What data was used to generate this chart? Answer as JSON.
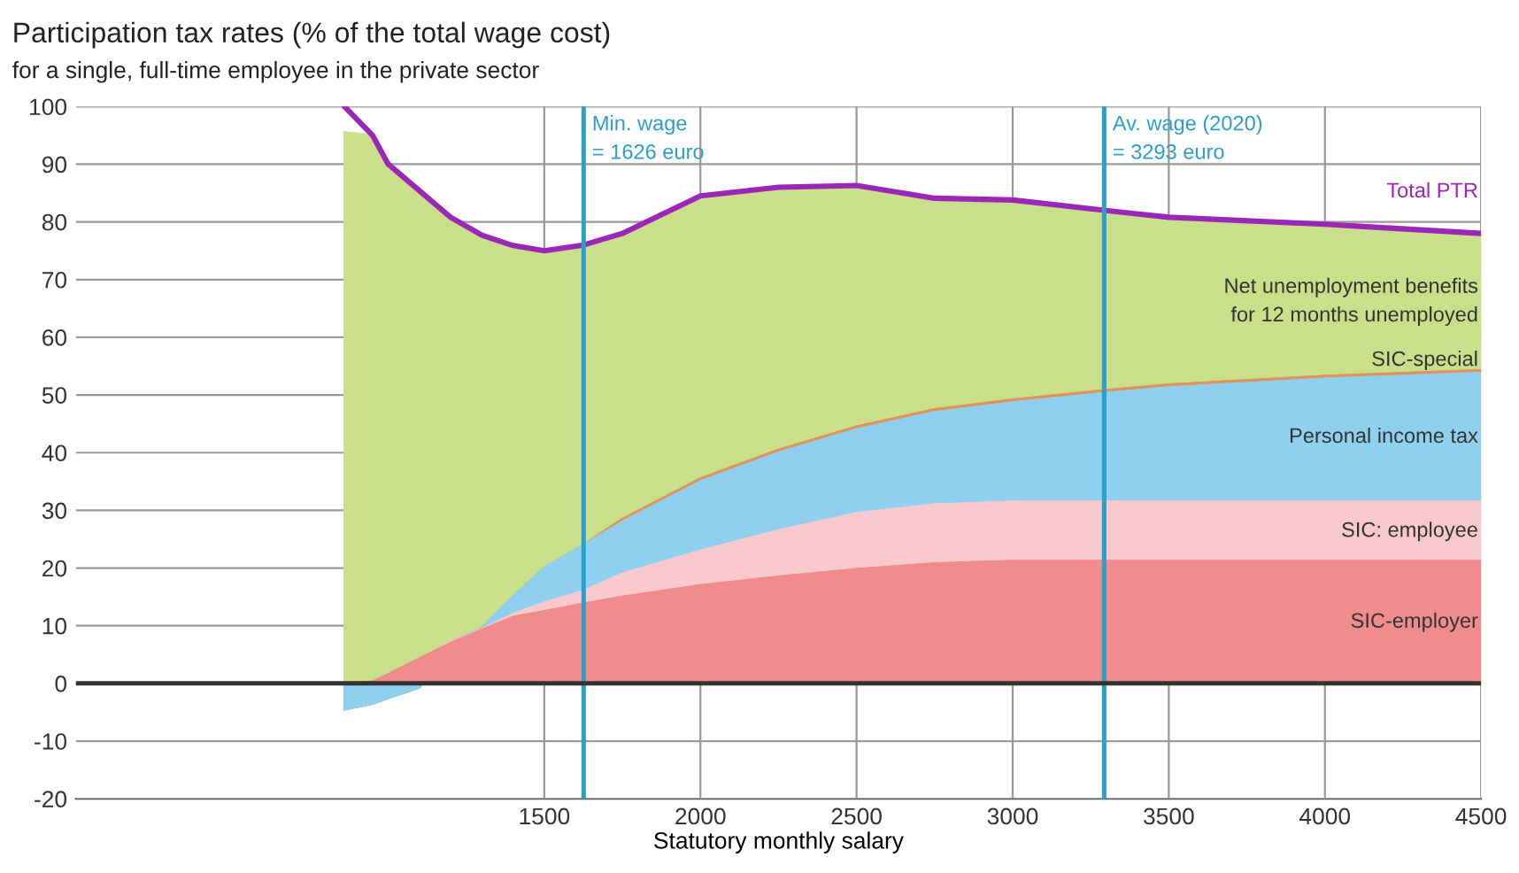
{
  "chart_data": {
    "type": "area",
    "stacked": true,
    "title": "Participation tax rates (% of the total wage cost)",
    "subtitle": "for a single, full-time employee in the private sector",
    "xlabel": "Statutory monthly salary",
    "x": [
      860,
      950,
      1000,
      1100,
      1200,
      1300,
      1400,
      1500,
      1626,
      1750,
      2000,
      2250,
      2500,
      2750,
      3000,
      3293,
      3500,
      4000,
      4500
    ],
    "series": [
      {
        "name": "SIC-employer",
        "color": "#f08c8c",
        "values": [
          0,
          0.3,
          1.6,
          4.3,
          7,
          9.3,
          11.5,
          12.5,
          13.8,
          15,
          17,
          18.5,
          19.8,
          20.8,
          21.2,
          21.2,
          21.2,
          21.2,
          21.2
        ]
      },
      {
        "name": "SIC: employee",
        "color": "#f7c9cc",
        "values": [
          0,
          0,
          0,
          0,
          0.2,
          0.1,
          0.5,
          1.5,
          2.2,
          4,
          6,
          8,
          9.7,
          10.2,
          10.3,
          10.3,
          10.3,
          10.3,
          10.3
        ]
      },
      {
        "name": "Personal income tax",
        "color": "#8fd0f0",
        "values": [
          -4.5,
          -3.8,
          -4.1,
          -5,
          0,
          0.2,
          3,
          6,
          8,
          9,
          12,
          13.5,
          14.5,
          16,
          17.2,
          18.8,
          19.8,
          21.3,
          22.3
        ]
      },
      {
        "name": "SIC-special",
        "color": "#e0935a",
        "values": [
          0,
          0,
          0,
          0,
          0,
          0,
          0,
          0,
          0,
          0.5,
          0.5,
          0.5,
          0.5,
          0.5,
          0.5,
          0.5,
          0.5,
          0.5,
          0.5
        ]
      },
      {
        "name": "Net unemployment benefits\nfor 12 months unemployed",
        "color": "#c9df8a",
        "values": [
          100,
          98.5,
          92.5,
          86.1,
          73.6,
          68.1,
          60.9,
          55,
          52,
          49.5,
          49,
          45.5,
          41.8,
          36.6,
          34.6,
          31.2,
          29,
          26.3,
          23.7
        ]
      },
      {
        "name": "Total PTR",
        "type": "line",
        "color": "#9b27b8",
        "values": [
          100,
          95,
          90,
          85.4,
          80.8,
          77.7,
          75.9,
          75,
          76,
          78,
          84.5,
          86,
          86.3,
          84.1,
          83.8,
          82,
          80.8,
          79.6,
          78
        ]
      }
    ],
    "xlim": [
      0,
      4500
    ],
    "xticks": [
      1500,
      2000,
      2500,
      3000,
      3500,
      4000,
      4500
    ],
    "ylim": [
      -20,
      100
    ],
    "yticks": [
      -20,
      -10,
      0,
      10,
      20,
      30,
      40,
      50,
      60,
      70,
      80,
      90,
      100
    ],
    "grid": true,
    "ref_lines": [
      {
        "axis": "x",
        "value": 1626,
        "label": "Min. wage\n= 1626 euro",
        "color": "#2a9fc9"
      },
      {
        "axis": "x",
        "value": 3293,
        "label": "Av. wage (2020)\n= 3293 euro",
        "color": "#2a9fc9"
      },
      {
        "axis": "y",
        "value": 0,
        "color": "#333333"
      }
    ]
  }
}
